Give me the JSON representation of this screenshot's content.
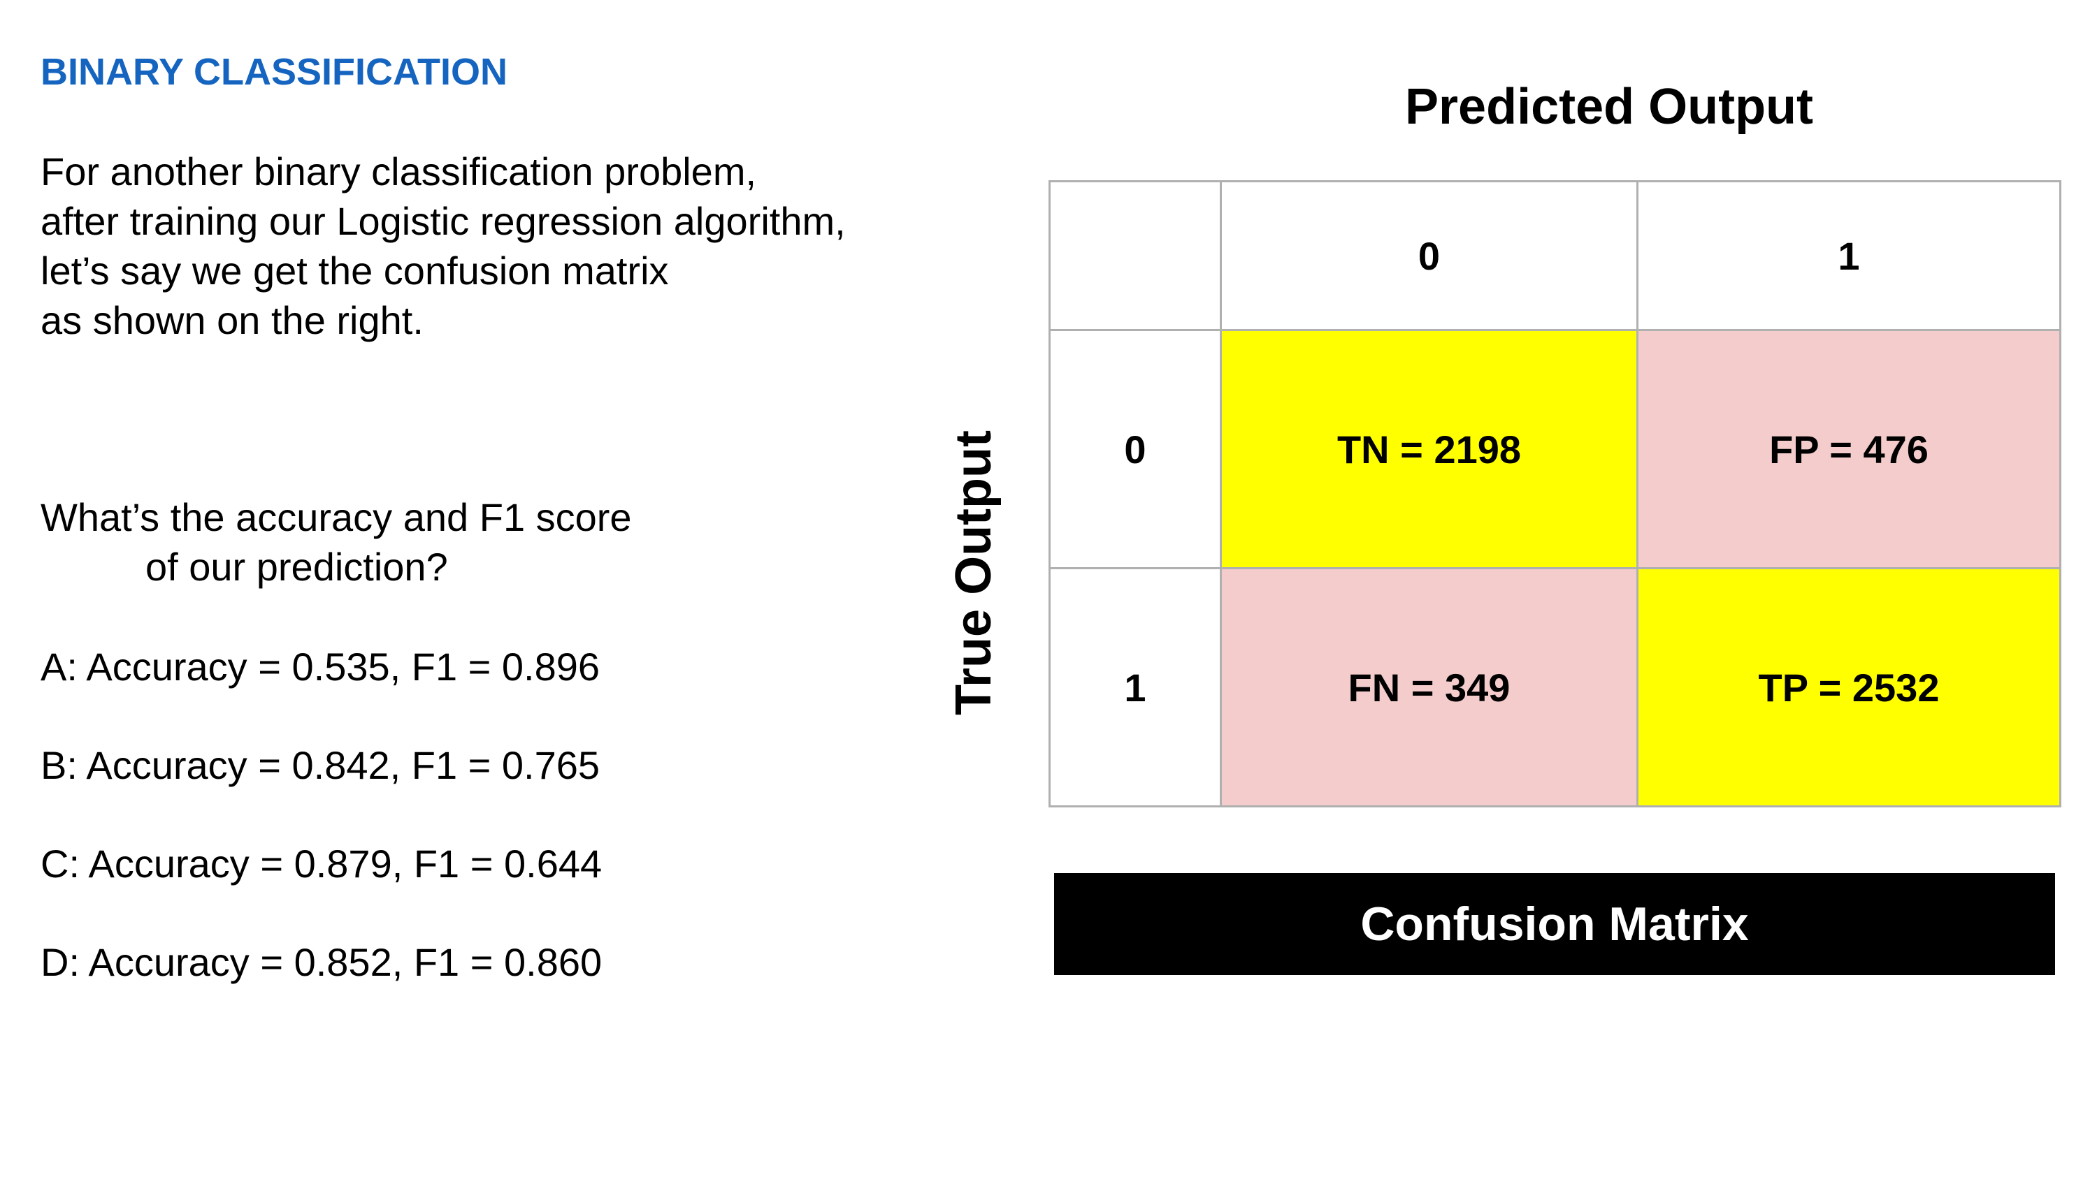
{
  "title": "BINARY CLASSIFICATION",
  "intro": [
    "For another binary classification problem,",
    "after training our Logistic regression algorithm,",
    "let’s say we get the confusion matrix",
    "as shown on the right."
  ],
  "question": {
    "line1": "What’s the accuracy and F1 score",
    "line2": "of our prediction?"
  },
  "options": {
    "a": "A: Accuracy = 0.535, F1 = 0.896",
    "b": "B: Accuracy = 0.842, F1 = 0.765",
    "c": "C: Accuracy = 0.879, F1 = 0.644",
    "d": "D: Accuracy = 0.852, F1 = 0.860"
  },
  "matrix": {
    "predicted_label": "Predicted Output",
    "true_label": "True Output",
    "col_headers": [
      "0",
      "1"
    ],
    "row_headers": [
      "0",
      "1"
    ],
    "tn": "TN = 2198",
    "fp": "FP = 476",
    "fn": "FN = 349",
    "tp": "TP = 2532",
    "colors": {
      "correct": "#ffff00",
      "incorrect": "#f4cccc",
      "grid": "#b0b0b0"
    }
  },
  "banner": "Confusion Matrix"
}
